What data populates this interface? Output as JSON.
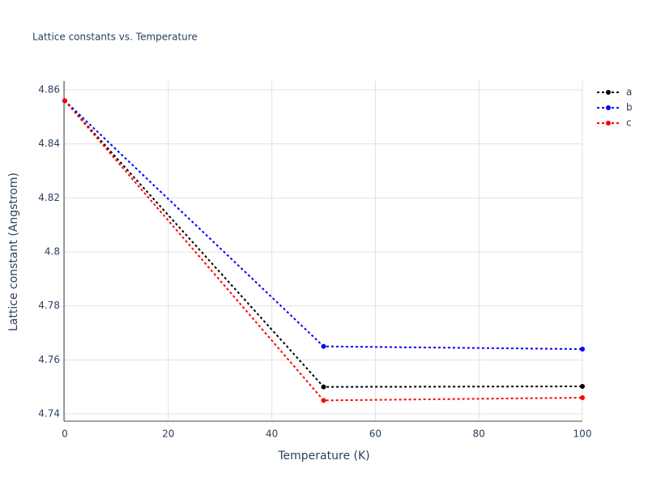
{
  "chart_data": {
    "type": "line",
    "title": "Lattice constants vs. Temperature",
    "x_label": "Temperature (K)",
    "y_label": "Lattice constant (Angstrom)",
    "x": [
      0,
      50,
      100
    ],
    "series": [
      {
        "name": "a",
        "color": "#000000",
        "values": [
          4.856,
          4.75,
          4.7502
        ]
      },
      {
        "name": "b",
        "color": "#0000ff",
        "values": [
          4.856,
          4.765,
          4.764
        ]
      },
      {
        "name": "c",
        "color": "#ff0000",
        "values": [
          4.856,
          4.745,
          4.746
        ]
      }
    ],
    "xlim": [
      0,
      100
    ],
    "xticks": [
      0,
      20,
      40,
      60,
      80,
      100
    ],
    "ylim": [
      4.7373,
      4.8633
    ],
    "yticks": [
      4.74,
      4.76,
      4.78,
      4.8,
      4.82,
      4.84,
      4.86
    ],
    "grid": true,
    "legend": "top-right"
  }
}
